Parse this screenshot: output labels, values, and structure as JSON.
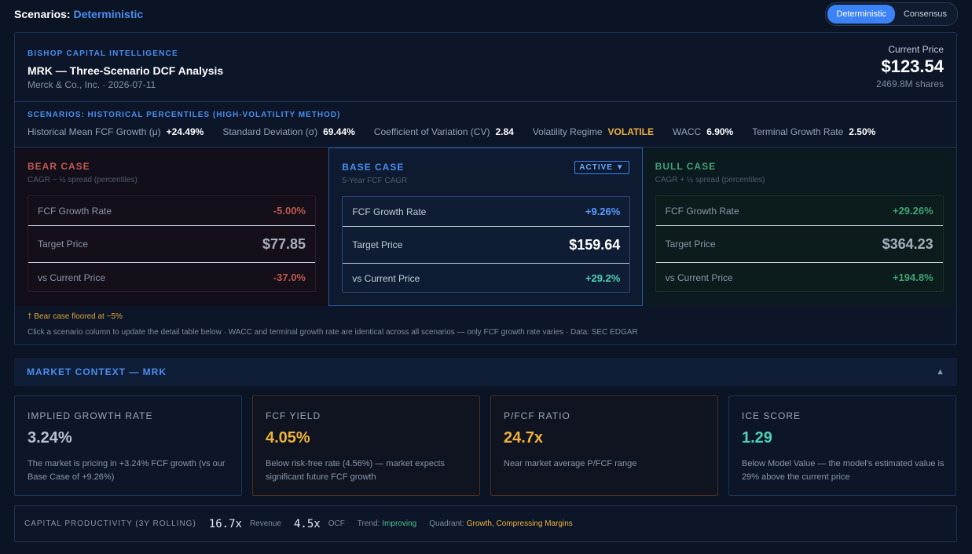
{
  "topbar": {
    "title_prefix": "Scenarios:",
    "title_mode": "Deterministic",
    "toggle_options": [
      "Deterministic",
      "Consensus"
    ],
    "toggle_selected": "Deterministic"
  },
  "header": {
    "brand": "BISHOP CAPITAL INTELLIGENCE",
    "title": "MRK — Three-Scenario DCF Analysis",
    "subtitle": "Merck & Co., Inc. · 2026-07-11",
    "current_price_label": "Current Price",
    "current_price": "$123.54",
    "shares": "2469.8M shares"
  },
  "stats": {
    "method": "SCENARIOS: HISTORICAL PERCENTILES (HIGH-VOLATILITY METHOD)",
    "items": [
      {
        "label": "Historical Mean FCF Growth (μ)",
        "value": "+24.49%"
      },
      {
        "label": "Standard Deviation (σ)",
        "value": "69.44%"
      },
      {
        "label": "Coefficient of Variation (CV)",
        "value": "2.84"
      },
      {
        "label": "Volatility Regime",
        "value": "VOLATILE"
      },
      {
        "label": "WACC",
        "value": "6.90%"
      },
      {
        "label": "Terminal Growth Rate",
        "value": "2.50%"
      }
    ]
  },
  "cases": {
    "bear": {
      "name": "BEAR CASE",
      "desc": "CAGR − ½ spread (percentiles)",
      "growth_label": "FCF Growth Rate",
      "growth": "-5.00%",
      "target_label": "Target Price",
      "target": "$77.85",
      "vs_label": "vs Current Price",
      "vs": "-37.0%"
    },
    "base": {
      "name": "BASE CASE",
      "desc": "5-Year FCF CAGR",
      "badge": "ACTIVE ▼",
      "growth_label": "FCF Growth Rate",
      "growth": "+9.26%",
      "target_label": "Target Price",
      "target": "$159.64",
      "vs_label": "vs Current Price",
      "vs": "+29.2%"
    },
    "bull": {
      "name": "BULL CASE",
      "desc": "CAGR + ½ spread (percentiles)",
      "growth_label": "FCF Growth Rate",
      "growth": "+29.26%",
      "target_label": "Target Price",
      "target": "$364.23",
      "vs_label": "vs Current Price",
      "vs": "+194.8%"
    }
  },
  "notes": {
    "floor": "† Bear case floored at −5%",
    "info": "Click a scenario column to update the detail table below · WACC and terminal growth rate are identical across all scenarios — only FCF growth rate varies · Data: SEC EDGAR"
  },
  "market_context": {
    "title": "MARKET CONTEXT — MRK",
    "caret": "▲"
  },
  "cards": [
    {
      "label": "IMPLIED GROWTH RATE",
      "value": "3.24%",
      "desc": "The market is pricing in +3.24% FCF growth (vs our Base Case of +9.26%)"
    },
    {
      "label": "FCF YIELD",
      "value": "4.05%",
      "desc": "Below risk-free rate (4.56%) — market expects significant future FCF growth"
    },
    {
      "label": "P/FCF RATIO",
      "value": "24.7x",
      "desc": "Near market average P/FCF range"
    },
    {
      "label": "ICE SCORE",
      "value": "1.29",
      "desc": "Below Model Value — the model's estimated value is 29% above the current price"
    }
  ],
  "capital_productivity": {
    "label": "CAPITAL PRODUCTIVITY (3Y ROLLING)",
    "revenue_value": "16.7x",
    "revenue_label": "Revenue",
    "ocf_value": "4.5x",
    "ocf_label": "OCF",
    "trend_label": "Trend:",
    "trend": "Improving",
    "quadrant_label": "Quadrant:",
    "quadrant": "Growth, Compressing Margins"
  },
  "colors": {
    "accent": "#4a8df0",
    "bear": "#c0584f",
    "bull": "#3fa274",
    "warning": "#f0b23a",
    "positive": "#4fd1b5"
  }
}
